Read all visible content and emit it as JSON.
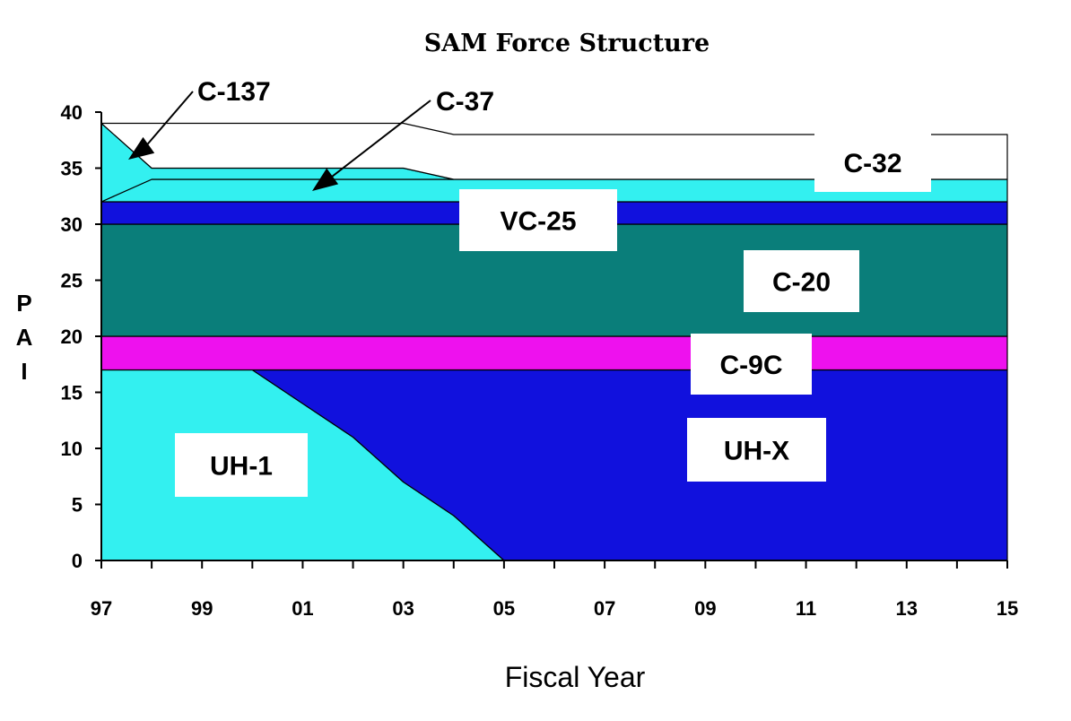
{
  "chart_data": {
    "type": "area",
    "title": "SAM Force Structure",
    "xlabel": "Fiscal Year",
    "ylabel": "PAI",
    "x_tick_labels": [
      "97",
      "99",
      "01",
      "03",
      "05",
      "07",
      "09",
      "11",
      "13",
      "15"
    ],
    "y_ticks": [
      0,
      5,
      10,
      15,
      20,
      25,
      30,
      35,
      40
    ],
    "xlim": [
      1997,
      2015
    ],
    "ylim": [
      0,
      40
    ],
    "grid": false,
    "legend": "none",
    "layers": [
      {
        "name": "UH-1",
        "color": "#33f0f0",
        "points": [
          [
            1997,
            0
          ],
          [
            1997,
            17
          ],
          [
            2000,
            17
          ],
          [
            2001,
            14
          ],
          [
            2002,
            11
          ],
          [
            2003,
            7
          ],
          [
            2004,
            4
          ],
          [
            2005,
            0
          ]
        ]
      },
      {
        "name": "UH-X",
        "color": "#1111dd",
        "points": [
          [
            2000,
            17
          ],
          [
            2015,
            17
          ],
          [
            2015,
            0
          ],
          [
            2005,
            0
          ],
          [
            2004,
            4
          ],
          [
            2003,
            7
          ],
          [
            2002,
            11
          ],
          [
            2001,
            14
          ]
        ]
      },
      {
        "name": "C-9C",
        "color": "#ee11ee",
        "points": [
          [
            1997,
            17
          ],
          [
            2015,
            17
          ],
          [
            2015,
            20
          ],
          [
            1997,
            20
          ]
        ]
      },
      {
        "name": "C-20",
        "color": "#0a7e7a",
        "points": [
          [
            1997,
            20
          ],
          [
            2015,
            20
          ],
          [
            2015,
            30
          ],
          [
            1997,
            30
          ]
        ]
      },
      {
        "name": "VC-25",
        "color": "#1111dd",
        "points": [
          [
            1997,
            30
          ],
          [
            2015,
            30
          ],
          [
            2015,
            32
          ],
          [
            1997,
            32
          ]
        ]
      },
      {
        "name": "C-37",
        "color": "#33f0f0",
        "points": [
          [
            1997,
            32
          ],
          [
            2015,
            32
          ],
          [
            2015,
            34
          ],
          [
            2004,
            34
          ],
          [
            1998,
            34
          ]
        ]
      },
      {
        "name": "C-137",
        "color": "#33f0f0",
        "points": [
          [
            1997,
            39
          ],
          [
            1998,
            35
          ],
          [
            2003,
            35
          ],
          [
            2004,
            34
          ],
          [
            1998,
            34
          ],
          [
            1997,
            32
          ]
        ]
      },
      {
        "name": "C-32",
        "color": "#ffffff",
        "points": [
          [
            1997,
            39
          ],
          [
            2003,
            39
          ],
          [
            2004,
            38
          ],
          [
            2015,
            38
          ],
          [
            2015,
            34
          ],
          [
            2004,
            34
          ],
          [
            2003,
            35
          ],
          [
            1998,
            35
          ]
        ]
      }
    ],
    "labels": [
      "UH-1",
      "UH-X",
      "C-9C",
      "C-20",
      "VC-25",
      "C-32"
    ],
    "callouts": [
      "C-137",
      "C-37"
    ]
  }
}
